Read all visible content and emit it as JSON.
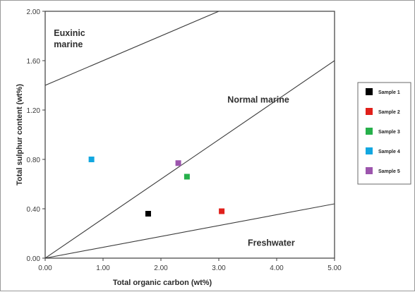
{
  "chart_data": {
    "type": "scatter",
    "xlabel": "Total organic carbon (wt%)",
    "ylabel": "Total sulphur content (wt%)",
    "xlim": [
      0,
      5
    ],
    "ylim": [
      0,
      2
    ],
    "x_ticks": [
      "0.00",
      "1.00",
      "2.00",
      "3.00",
      "4.00",
      "5.00"
    ],
    "x_tick_values": [
      0,
      1,
      2,
      3,
      4,
      5
    ],
    "y_ticks": [
      "0.00",
      "0.40",
      "0.80",
      "1.20",
      "1.60",
      "2.00"
    ],
    "y_tick_values": [
      0,
      0.4,
      0.8,
      1.2,
      1.6,
      2.0
    ],
    "grid": false,
    "legend_position": "right",
    "boundary_lines": [
      {
        "name": "upper",
        "x": [
          0,
          3.0
        ],
        "y": [
          1.4,
          2.0
        ]
      },
      {
        "name": "middle",
        "x": [
          0,
          5.0
        ],
        "y": [
          0,
          1.6
        ]
      },
      {
        "name": "lower",
        "x": [
          0,
          5.0
        ],
        "y": [
          0,
          0.44
        ]
      }
    ],
    "regions": [
      {
        "label_lines": [
          "Euxinic",
          "marine"
        ],
        "x": 0.15,
        "y": 1.8
      },
      {
        "label_lines": [
          "Normal marine"
        ],
        "x": 3.15,
        "y": 1.26
      },
      {
        "label_lines": [
          "Freshwater"
        ],
        "x": 3.5,
        "y": 0.1
      }
    ],
    "series": [
      {
        "name": "Sample 1",
        "color": "#000000",
        "x": [
          1.78
        ],
        "y": [
          0.36
        ]
      },
      {
        "name": "Sample 2",
        "color": "#e0201b",
        "x": [
          3.05
        ],
        "y": [
          0.38
        ]
      },
      {
        "name": "Sample 3",
        "color": "#26b04b",
        "x": [
          2.45
        ],
        "y": [
          0.66
        ]
      },
      {
        "name": "Sample 4",
        "color": "#12a7e0",
        "x": [
          0.8
        ],
        "y": [
          0.8
        ]
      },
      {
        "name": "Sample 5",
        "color": "#9c55ad",
        "x": [
          2.3
        ],
        "y": [
          0.77
        ]
      }
    ]
  }
}
